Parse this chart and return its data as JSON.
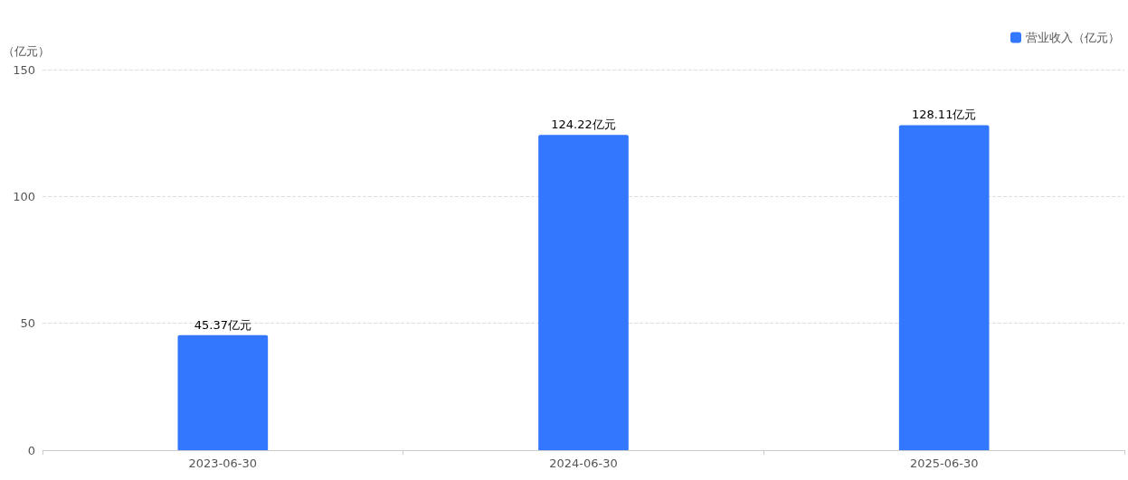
{
  "chart_data": {
    "type": "bar",
    "ylabel": "（亿元）",
    "categories": [
      "2023-06-30",
      "2024-06-30",
      "2025-06-30"
    ],
    "series": [
      {
        "name": "营业收入（亿元）",
        "color": "#3377ff",
        "values": [
          45.37,
          124.22,
          128.11
        ],
        "value_labels": [
          "45.37亿元",
          "124.22亿元",
          "128.11亿元"
        ]
      }
    ],
    "ylim": [
      0,
      150
    ],
    "yticks": [
      0,
      50,
      100,
      150
    ],
    "grid": "y",
    "legend": "top right"
  }
}
